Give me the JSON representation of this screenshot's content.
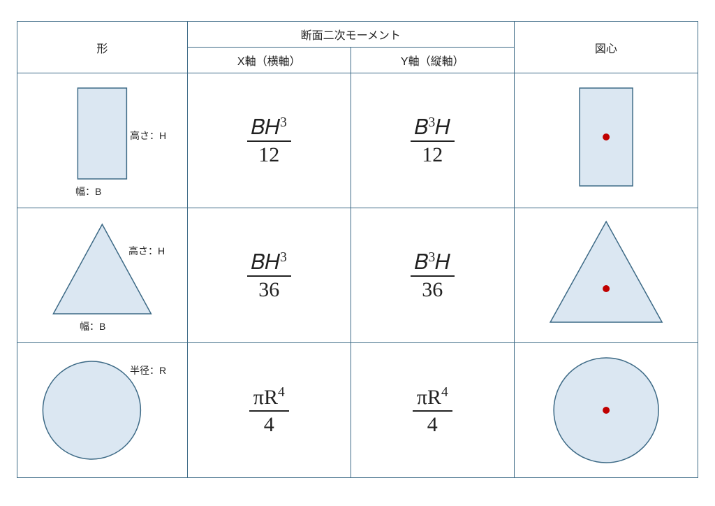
{
  "colors": {
    "border": "#3d6a86",
    "shape_fill": "#dbe7f2",
    "shape_stroke": "#3d6a86",
    "centroid": "#c00000",
    "text": "#222222",
    "background": "#ffffff"
  },
  "headers": {
    "shape": "形",
    "moment_group": "断面二次モーメント",
    "x_axis": "X軸（横軸）",
    "y_axis": "Y軸（縦軸）",
    "centroid": "図心"
  },
  "labels": {
    "height": "高さ：H",
    "width": "幅：B",
    "radius": "半径：R"
  },
  "rows": [
    {
      "shape": "rectangle",
      "Ix": {
        "num_html": "<span class='upright'>𝐵𝐻</span><sup>3</sup>",
        "den": "12"
      },
      "Iy": {
        "num_html": "<span class='upright'>𝐵</span><sup>3</sup><span class='upright'>𝐻</span>",
        "den": "12"
      }
    },
    {
      "shape": "triangle",
      "Ix": {
        "num_html": "<span class='upright'>𝐵𝐻</span><sup>3</sup>",
        "den": "36"
      },
      "Iy": {
        "num_html": "<span class='upright'>𝐵</span><sup>3</sup><span class='upright'>𝐻</span>",
        "den": "36"
      }
    },
    {
      "shape": "circle",
      "Ix": {
        "num_html": "<span class='upright'>πR</span><sup>4</sup>",
        "den": "4"
      },
      "Iy": {
        "num_html": "<span class='upright'>πR</span><sup>4</sup>",
        "den": "4"
      }
    }
  ]
}
